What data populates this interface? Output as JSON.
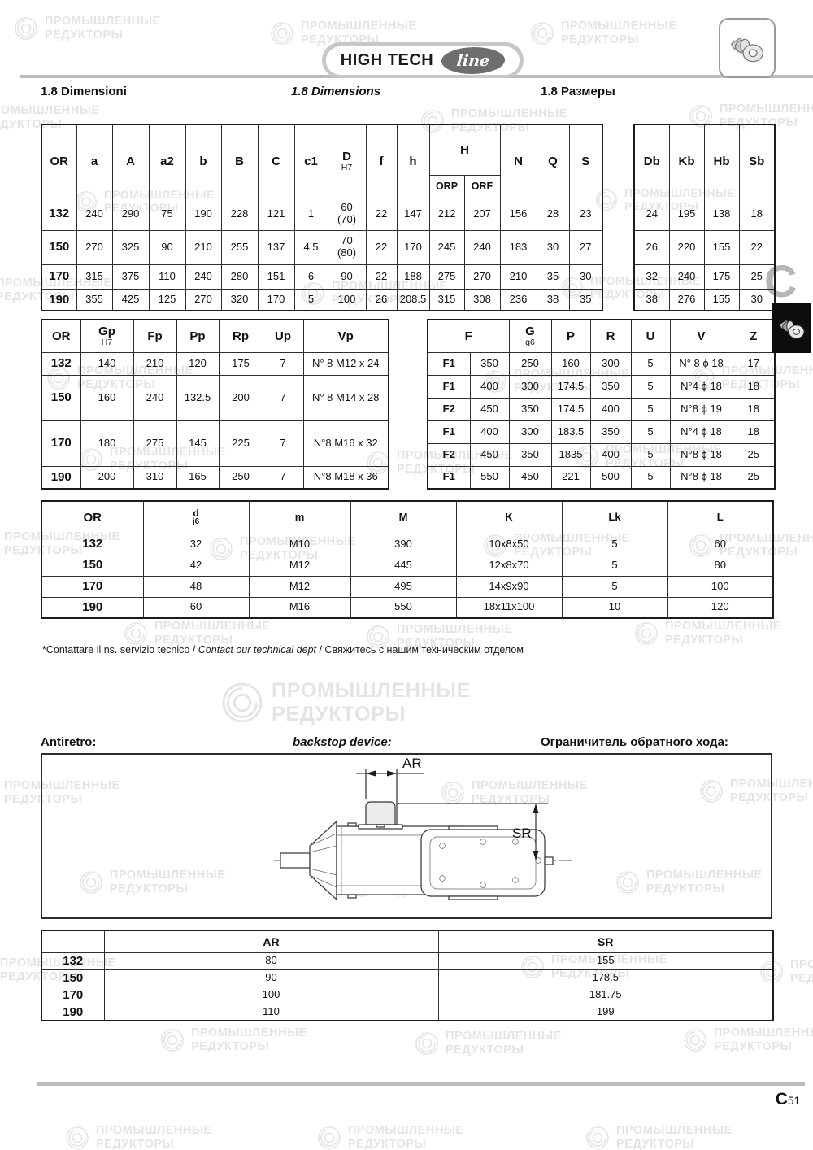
{
  "page": {
    "logo": {
      "text": "HIGH TECH",
      "script": "line"
    },
    "corner_icon": "gearbox-icon",
    "tab_icon": "gearbox-icon",
    "side_tab_letter": "C",
    "page_number": {
      "letter": "C",
      "number": "51"
    },
    "watermark": {
      "line1": "ПРОМЫШЛЕННЫЕ",
      "line2": "РЕДУКТОРЫ"
    }
  },
  "section_titles": {
    "it": "1.8   Dimensioni",
    "en": "1.8   Dimensions",
    "ru": "1.8 Размеры"
  },
  "table1": {
    "headers": {
      "or": "OR",
      "a": "a",
      "A": "A",
      "a2": "a2",
      "b": "b",
      "B": "B",
      "C": "C",
      "c1": "c1",
      "D": "D",
      "D_sub": "H7",
      "f": "f",
      "h": "h",
      "H": "H",
      "orp": "ORP",
      "orf": "ORF",
      "N": "N",
      "Q": "Q",
      "S": "S",
      "Db": "Db",
      "Kb": "Kb",
      "Hb": "Hb",
      "Sb": "Sb"
    },
    "rows": [
      {
        "or": "132",
        "cells": [
          "240",
          "290",
          "75",
          "190",
          "228",
          "121",
          "1",
          "60\n(70)",
          "22",
          "147",
          "212",
          "207",
          "156",
          "28",
          "23"
        ],
        "right": [
          "24",
          "195",
          "138",
          "18"
        ]
      },
      {
        "or": "150",
        "cells": [
          "270",
          "325",
          "90",
          "210",
          "255",
          "137",
          "4.5",
          "70\n(80)",
          "22",
          "170",
          "245",
          "240",
          "183",
          "30",
          "27"
        ],
        "right": [
          "26",
          "220",
          "155",
          "22"
        ]
      },
      {
        "or": "170",
        "cells": [
          "315",
          "375",
          "110",
          "240",
          "280",
          "151",
          "6",
          "90",
          "22",
          "188",
          "275",
          "270",
          "210",
          "35",
          "30"
        ],
        "right": [
          "32",
          "240",
          "175",
          "25"
        ]
      },
      {
        "or": "190",
        "cells": [
          "355",
          "425",
          "125",
          "270",
          "320",
          "170",
          "5",
          "100",
          "26",
          "208.5",
          "315",
          "308",
          "236",
          "38",
          "35"
        ],
        "right": [
          "38",
          "276",
          "155",
          "30"
        ]
      }
    ]
  },
  "table2": {
    "headers": {
      "or": "OR",
      "Gp": "Gp",
      "Gp_sub": "H7",
      "Fp": "Fp",
      "Pp": "Pp",
      "Rp": "Rp",
      "Up": "Up",
      "Vp": "Vp",
      "F": "F",
      "G": "G",
      "G_sub": "g6",
      "P": "P",
      "R": "R",
      "U": "U",
      "V": "V",
      "Z": "Z"
    },
    "left_rows": [
      {
        "or": "132",
        "span": 1,
        "cells": [
          "140",
          "210",
          "120",
          "175",
          "7",
          "N° 8 M12 x 24"
        ]
      },
      {
        "or": "150",
        "span": 2,
        "cells": [
          "160",
          "240",
          "132.5",
          "200",
          "7",
          "N° 8 M14 x 28"
        ]
      },
      {
        "or": "170",
        "span": 2,
        "cells": [
          "180",
          "275",
          "145",
          "225",
          "7",
          "N°8 M16 x 32"
        ]
      },
      {
        "or": "190",
        "span": 1,
        "cells": [
          "200",
          "310",
          "165",
          "250",
          "7",
          "N°8 M18 x 36"
        ]
      }
    ],
    "right_rows": [
      [
        "F1",
        "350",
        "250",
        "160",
        "300",
        "5",
        "N° 8 ϕ 18",
        "17"
      ],
      [
        "F1",
        "400",
        "300",
        "174.5",
        "350",
        "5",
        "N°4 ϕ 18",
        "18"
      ],
      [
        "F2",
        "450",
        "350",
        "174.5",
        "400",
        "5",
        "N°8 ϕ 19",
        "18"
      ],
      [
        "F1",
        "400",
        "300",
        "183.5",
        "350",
        "5",
        "N°4 ϕ 18",
        "18"
      ],
      [
        "F2",
        "450",
        "350",
        "1835",
        "400",
        "5",
        "N°8 ϕ 18",
        "25"
      ],
      [
        "F1",
        "550",
        "450",
        "221",
        "500",
        "5",
        "N°8 ϕ 18",
        "25"
      ]
    ]
  },
  "table3": {
    "headers": {
      "or": "OR",
      "d_main": "d",
      "d_sub": "j6",
      "m": "m",
      "M": "M",
      "K": "K",
      "Lk": "Lk",
      "L": "L"
    },
    "rows": [
      [
        "132",
        "32",
        "M10",
        "390",
        "10x8x50",
        "5",
        "60"
      ],
      [
        "150",
        "42",
        "M12",
        "445",
        "12x8x70",
        "5",
        "80"
      ],
      [
        "170",
        "48",
        "M12",
        "495",
        "14x9x90",
        "5",
        "100"
      ],
      [
        "190",
        "60",
        "M16",
        "550",
        "18x11x100",
        "10",
        "120"
      ]
    ]
  },
  "footnote": {
    "it": "*Contattare il ns. servizio tecnico",
    "sep1": " / ",
    "en": "Contact our technical dept",
    "sep2": " / ",
    "ru": "Свяжитесь с нашим техническим отделом"
  },
  "backstop": {
    "titles": {
      "it": "Antiretro:",
      "en": "backstop device:",
      "ru": "Ограничитель обратного хода:"
    },
    "labels": {
      "ar": "AR",
      "sr": "SR"
    },
    "table": {
      "headers": {
        "ar": "AR",
        "sr": "SR"
      },
      "rows": [
        {
          "or": "132",
          "ar": "80",
          "sr": "155"
        },
        {
          "or": "150",
          "ar": "90",
          "sr": "178.5"
        },
        {
          "or": "170",
          "ar": "100",
          "sr": "181.75"
        },
        {
          "or": "190",
          "ar": "110",
          "sr": "199"
        }
      ]
    }
  }
}
